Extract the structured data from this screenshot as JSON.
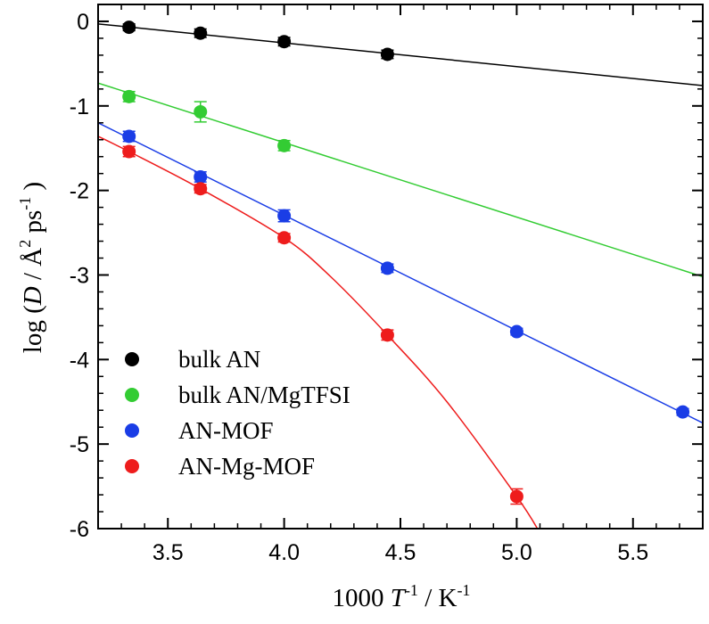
{
  "chart_data": {
    "type": "scatter",
    "xlabel": {
      "prefix": "1000 ",
      "var": "T",
      "exp1": "-1",
      "mid": " / K",
      "exp2": "-1"
    },
    "ylabel": {
      "prefix": "log (",
      "var": "D",
      "mid": " / Å",
      "exp1": "2",
      "unit2": " ps",
      "exp2": "-1",
      "suffix": " )"
    },
    "xlim": [
      3.2,
      5.8
    ],
    "ylim": [
      -6,
      0.2
    ],
    "x_ticks": [
      3.5,
      4.0,
      4.5,
      5.0,
      5.5
    ],
    "x_tick_labels": [
      "3.5",
      "4.0",
      "4.5",
      "5.0",
      "5.5"
    ],
    "y_ticks": [
      0,
      -1,
      -2,
      -3,
      -4,
      -5,
      -6
    ],
    "y_tick_labels": [
      "0",
      "-1",
      "-2",
      "-3",
      "-4",
      "-5",
      "-6"
    ],
    "grid": false,
    "legend_position": "bottom-left",
    "series": [
      {
        "name": "bulk AN",
        "color": "#000000",
        "fit_line_color": "#000000",
        "x": [
          3.333,
          3.64,
          4.0,
          4.444
        ],
        "y": [
          -0.07,
          -0.14,
          -0.24,
          -0.39
        ],
        "yerr": [
          0.04,
          0.05,
          0.05,
          0.05
        ],
        "fit": {
          "kind": "linear",
          "points": [
            [
              3.2,
              -0.03
            ],
            [
              5.8,
              -0.76
            ]
          ]
        }
      },
      {
        "name": "bulk AN/MgTFSI",
        "color": "#33cc33",
        "fit_line_color": "#33cc33",
        "x": [
          3.333,
          3.64,
          4.0
        ],
        "y": [
          -0.89,
          -1.07,
          -1.47
        ],
        "yerr": [
          0.06,
          0.12,
          0.06
        ],
        "fit": {
          "kind": "linear",
          "points": [
            [
              3.2,
              -0.73
            ],
            [
              5.8,
              -3.02
            ]
          ]
        }
      },
      {
        "name": "AN-MOF",
        "color": "#1a3de6",
        "fit_line_color": "#1a3de6",
        "x": [
          3.333,
          3.64,
          4.0,
          4.444,
          5.0,
          5.714
        ],
        "y": [
          -1.36,
          -1.84,
          -2.3,
          -2.92,
          -3.67,
          -4.62
        ],
        "yerr": [
          0.06,
          0.06,
          0.07,
          0.05,
          0.04,
          0.04
        ],
        "fit": {
          "kind": "linear",
          "points": [
            [
              3.2,
              -1.2
            ],
            [
              5.8,
              -4.75
            ]
          ]
        }
      },
      {
        "name": "AN-Mg-MOF",
        "color": "#ee1c1c",
        "fit_line_color": "#ee1c1c",
        "x": [
          3.333,
          3.64,
          4.0,
          4.444,
          5.0
        ],
        "y": [
          -1.54,
          -1.98,
          -2.56,
          -3.71,
          -5.62
        ],
        "yerr": [
          0.06,
          0.05,
          0.05,
          0.06,
          0.09
        ],
        "fit": {
          "kind": "quadratic",
          "points": [
            [
              3.2,
              -1.36
            ],
            [
              3.333,
              -1.54
            ],
            [
              3.64,
              -1.98
            ],
            [
              4.0,
              -2.56
            ],
            [
              4.2,
              -3.02
            ],
            [
              4.444,
              -3.71
            ],
            [
              4.7,
              -4.5
            ],
            [
              5.0,
              -5.62
            ],
            [
              5.1,
              -6.05
            ]
          ]
        }
      }
    ]
  }
}
